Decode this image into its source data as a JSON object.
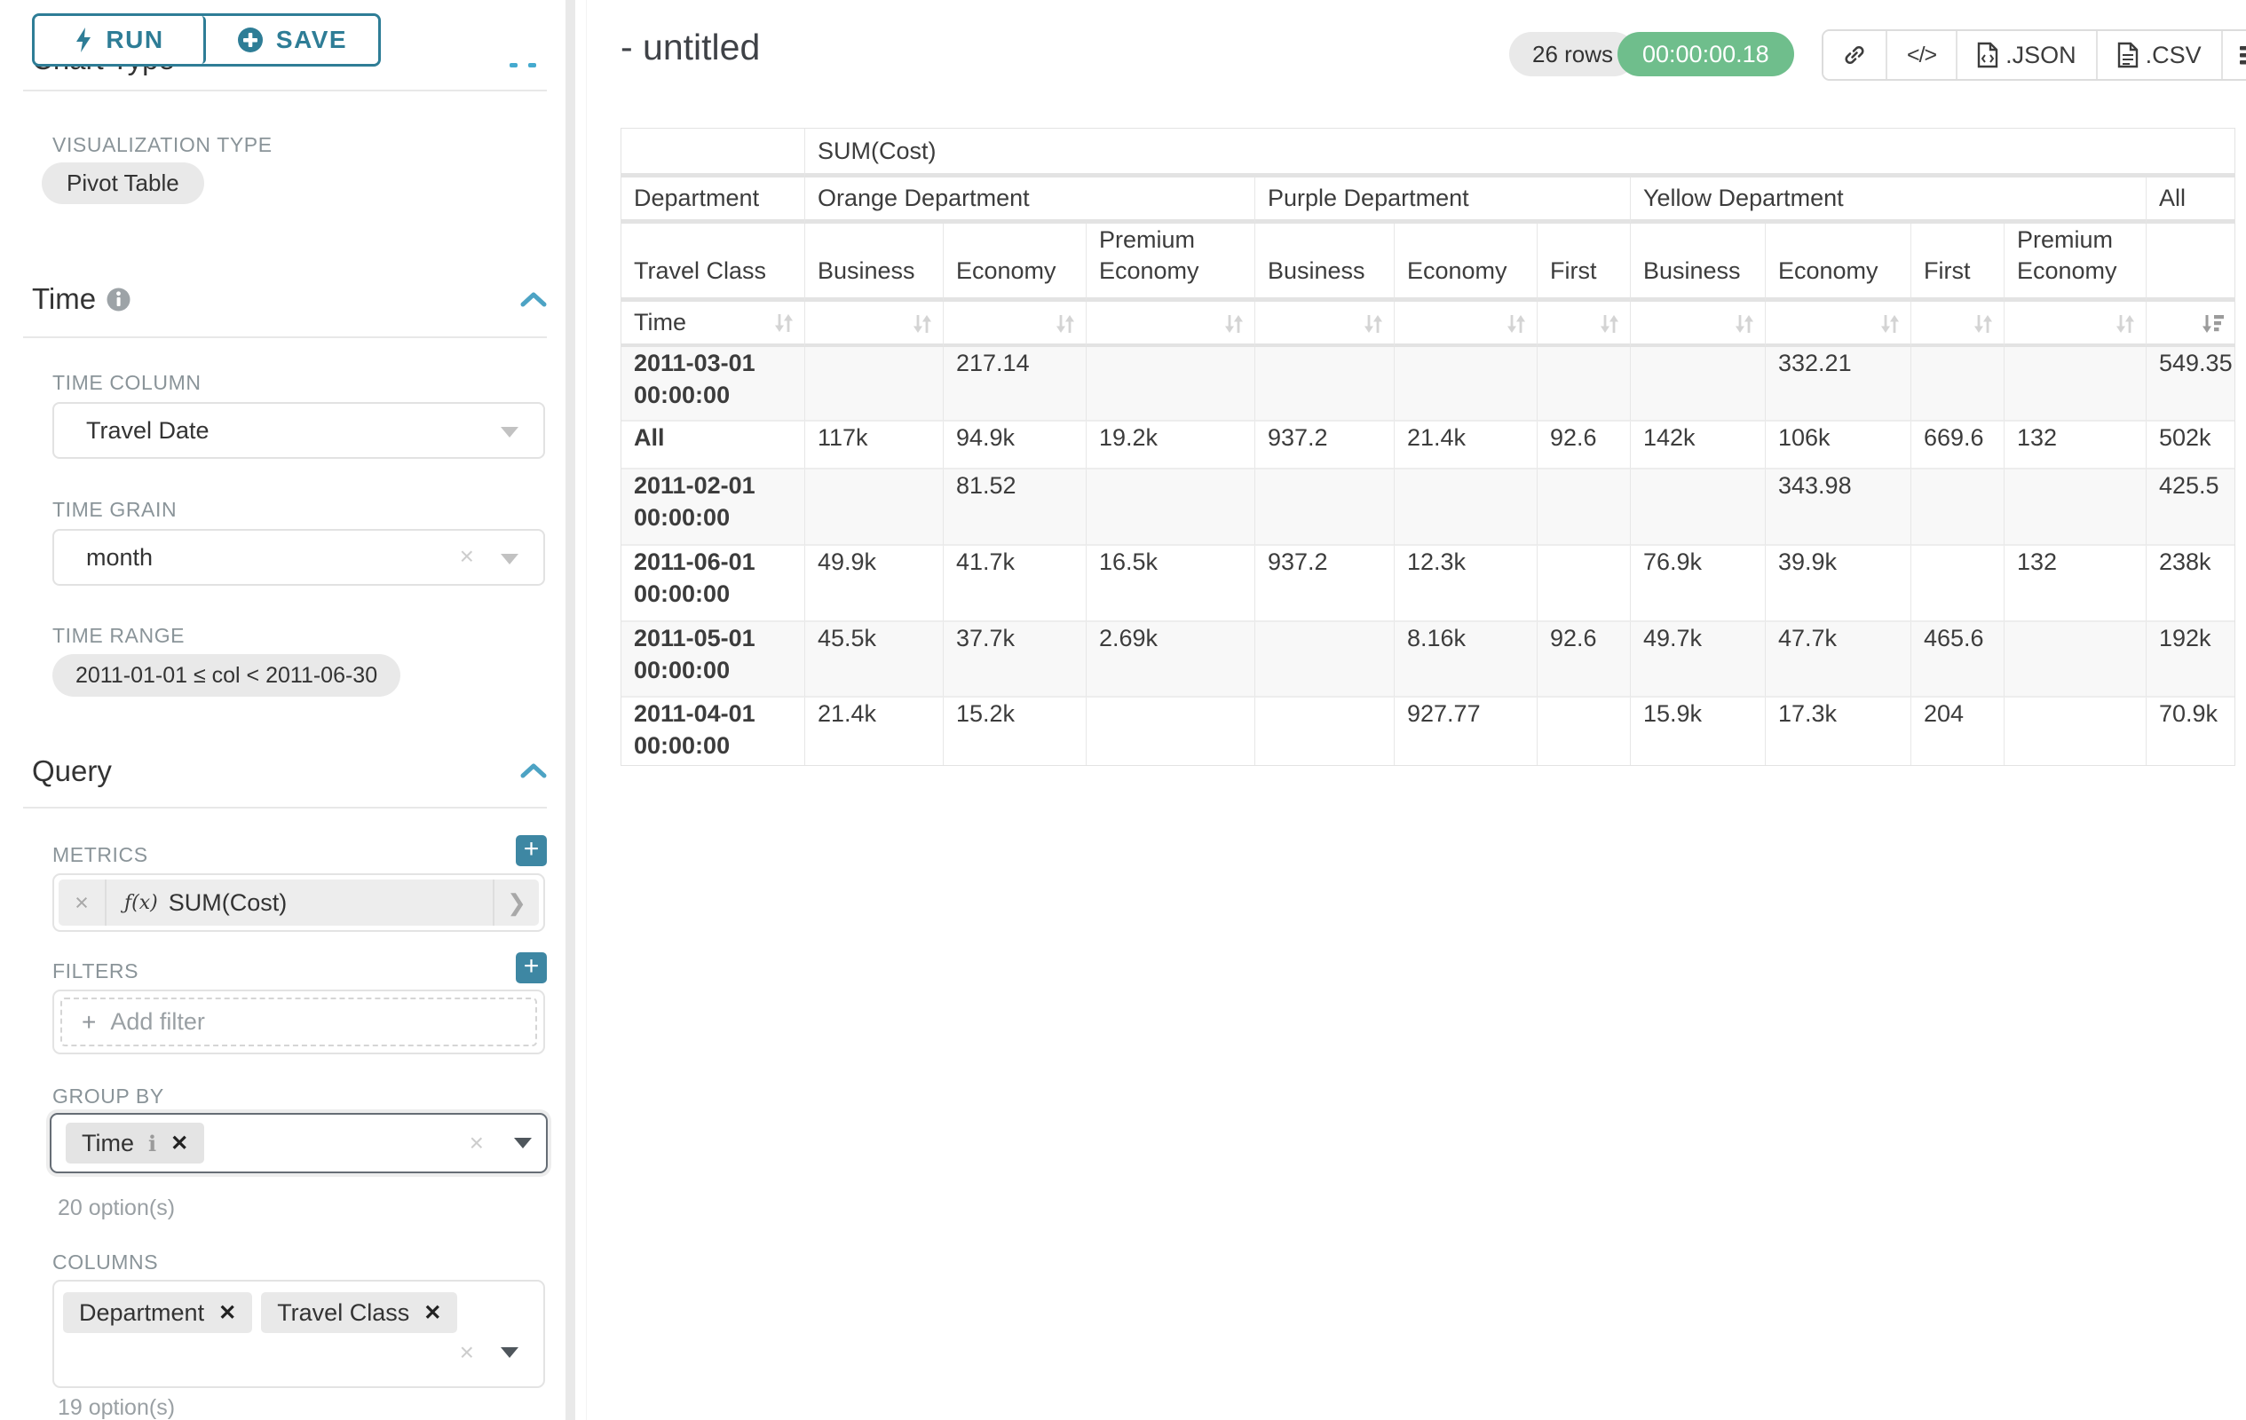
{
  "sidebar": {
    "run_label": "RUN",
    "save_label": "SAVE",
    "chart_type_heading": "Chart Type",
    "visualization_label": "VISUALIZATION TYPE",
    "visualization_value": "Pivot Table",
    "time_section": {
      "title": "Time",
      "time_column_label": "TIME COLUMN",
      "time_column_value": "Travel Date",
      "time_grain_label": "TIME GRAIN",
      "time_grain_value": "month",
      "time_range_label": "TIME RANGE",
      "time_range_value": "2011-01-01 ≤ col < 2011-06-30"
    },
    "query_section": {
      "title": "Query",
      "metrics_label": "METRICS",
      "metric_fx": "ƒ(x)",
      "metric_value": "SUM(Cost)",
      "filters_label": "FILTERS",
      "add_filter_placeholder": "Add filter",
      "group_by_label": "GROUP BY",
      "group_by_chips": [
        "Time"
      ],
      "group_by_hint": "20 option(s)",
      "columns_label": "COLUMNS",
      "columns_chips": [
        "Department",
        "Travel Class"
      ],
      "columns_hint": "19 option(s)"
    }
  },
  "header": {
    "title": "- untitled",
    "rows_badge": "26 rows",
    "timer": "00:00:00.18",
    "json_label": ".JSON",
    "csv_label": ".CSV"
  },
  "colors": {
    "accent_teal": "#3e87a3",
    "button_teal": "#2e7d96",
    "timer_green": "#6fbe8c",
    "chevron_blue": "#4da3c4"
  },
  "chart_data": {
    "type": "table",
    "metric_header": "SUM(Cost)",
    "row_headers": [
      "Department",
      "Travel Class",
      "Time"
    ],
    "column_groups": [
      {
        "label": "Orange Department",
        "columns": [
          "Business",
          "Economy",
          "Premium Economy"
        ]
      },
      {
        "label": "Purple Department",
        "columns": [
          "Business",
          "Economy",
          "First"
        ]
      },
      {
        "label": "Yellow Department",
        "columns": [
          "Business",
          "Economy",
          "First",
          "Premium Economy"
        ]
      },
      {
        "label": "All",
        "columns": [
          ""
        ]
      }
    ],
    "rows": [
      {
        "label": "2011-03-01 00:00:00",
        "values": [
          "",
          "217.14",
          "",
          "",
          "",
          "",
          "",
          "332.21",
          "",
          "",
          "549.35"
        ]
      },
      {
        "label": "All",
        "values": [
          "117k",
          "94.9k",
          "19.2k",
          "937.2",
          "21.4k",
          "92.6",
          "142k",
          "106k",
          "669.6",
          "132",
          "502k"
        ]
      },
      {
        "label": "2011-02-01 00:00:00",
        "values": [
          "",
          "81.52",
          "",
          "",
          "",
          "",
          "",
          "343.98",
          "",
          "",
          "425.5"
        ]
      },
      {
        "label": "2011-06-01 00:00:00",
        "values": [
          "49.9k",
          "41.7k",
          "16.5k",
          "937.2",
          "12.3k",
          "",
          "76.9k",
          "39.9k",
          "",
          "132",
          "238k"
        ]
      },
      {
        "label": "2011-05-01 00:00:00",
        "values": [
          "45.5k",
          "37.7k",
          "2.69k",
          "",
          "8.16k",
          "92.6",
          "49.7k",
          "47.7k",
          "465.6",
          "",
          "192k"
        ]
      },
      {
        "label": "2011-04-01 00:00:00",
        "values": [
          "21.4k",
          "15.2k",
          "",
          "",
          "927.77",
          "",
          "15.9k",
          "17.3k",
          "204",
          "",
          "70.9k"
        ]
      }
    ],
    "sort": {
      "column": "All",
      "direction": "desc"
    }
  }
}
